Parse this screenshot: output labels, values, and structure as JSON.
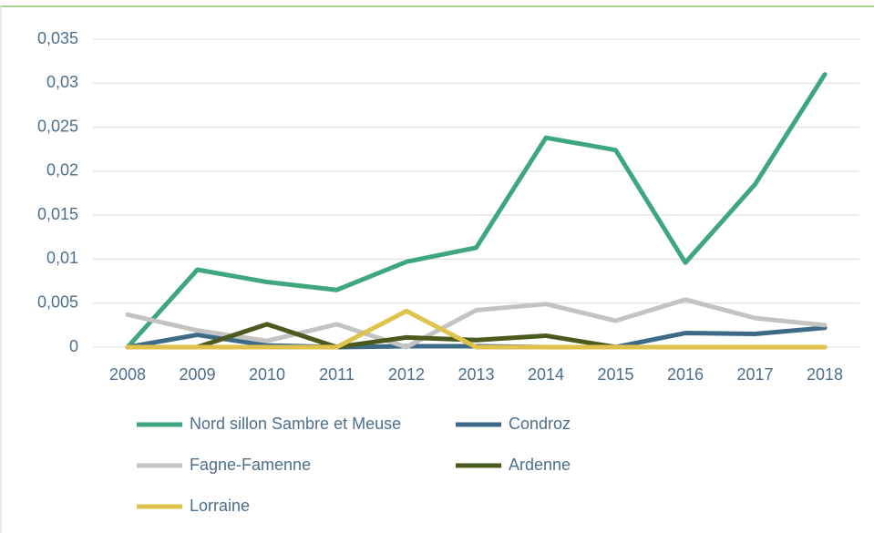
{
  "chart_data": {
    "type": "line",
    "categories": [
      "2008",
      "2009",
      "2010",
      "2011",
      "2012",
      "2013",
      "2014",
      "2015",
      "2016",
      "2017",
      "2018"
    ],
    "series": [
      {
        "name": "Nord sillon Sambre et Meuse",
        "color": "#3fa77e",
        "values": [
          0,
          0.0088,
          0.0074,
          0.0065,
          0.0097,
          0.0113,
          0.0238,
          0.0224,
          0.0096,
          0.0185,
          0.031
        ]
      },
      {
        "name": "Condroz",
        "color": "#3d6b87",
        "values": [
          0,
          0.0014,
          0.0002,
          0,
          0.0001,
          0.0001,
          0,
          0,
          0.0016,
          0.0015,
          0.0022
        ]
      },
      {
        "name": "Fagne-Famenne",
        "color": "#c3c3c3",
        "values": [
          0.0037,
          0.0019,
          0.0007,
          0.0026,
          0,
          0.0042,
          0.0049,
          0.003,
          0.0054,
          0.0033,
          0.0025
        ]
      },
      {
        "name": "Ardenne",
        "color": "#4a5a1e",
        "values": [
          0,
          0,
          0.0026,
          0,
          0.0011,
          0.0008,
          0.0013,
          0,
          0,
          0,
          0
        ]
      },
      {
        "name": "Lorraine",
        "color": "#e0c24e",
        "values": [
          0,
          0,
          0,
          0,
          0.0041,
          0,
          0,
          0,
          0,
          0,
          0
        ]
      }
    ],
    "ylim": [
      0,
      0.035
    ],
    "yticks": [
      0,
      {
        "value": 0.005,
        "label": "0,005"
      },
      {
        "value": 0.01,
        "label": "0,01"
      },
      {
        "value": 0.015,
        "label": "0,015"
      },
      {
        "value": 0.02,
        "label": "0,02"
      },
      {
        "value": 0.025,
        "label": "0,025"
      },
      {
        "value": 0.03,
        "label": "0,03"
      },
      {
        "value": 0.035,
        "label": "0,035"
      }
    ],
    "grid": true,
    "legend": "bottom"
  }
}
